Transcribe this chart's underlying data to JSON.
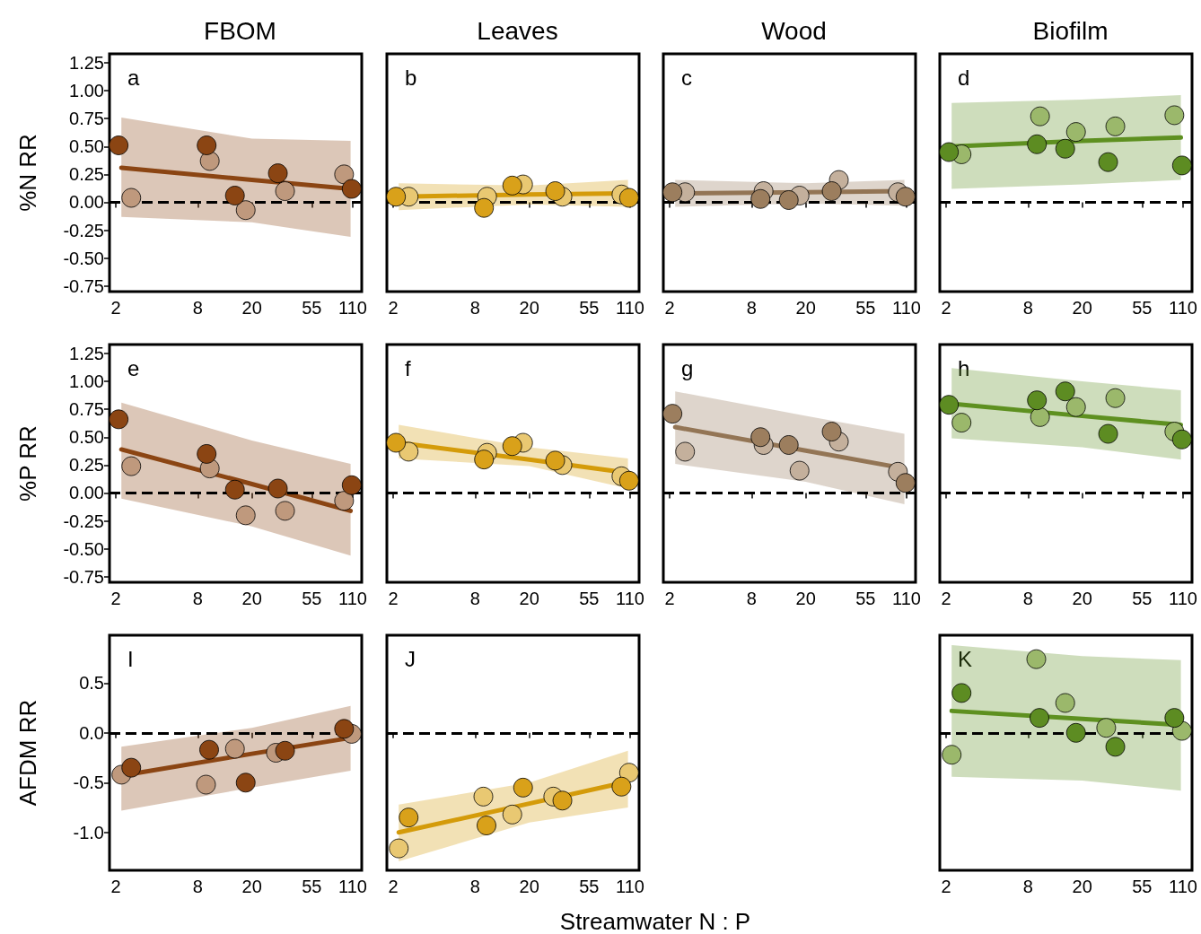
{
  "chart_data": [
    {
      "type": "scatter",
      "title": "FBOM",
      "ylabel": "%N RR",
      "annotations": [
        "a"
      ],
      "log": "x",
      "xlim": [
        1.8,
        128
      ],
      "xticks": [
        2,
        8,
        20,
        55,
        110
      ],
      "ylim": [
        -0.8,
        1.33
      ],
      "yticks": [
        -0.75,
        {
          "value": -0.5,
          "label": "-0.50"
        },
        -0.25,
        {
          "value": 0,
          "label": "0.00"
        },
        0.25,
        {
          "value": 0.5,
          "label": "0.50"
        },
        0.75,
        {
          "value": 1,
          "label": "1.00"
        },
        1.25
      ],
      "ref_lines": [
        {
          "axis": "y",
          "value": 0,
          "color": "#000000",
          "line_style": "dashed"
        }
      ],
      "series": [
        {
          "type": "line",
          "color": "#8b4513",
          "x": [
            2.2,
            20,
            106
          ],
          "values": [
            0.31,
            0.2,
            0.12
          ],
          "lower": [
            -0.13,
            -0.18,
            -0.31
          ],
          "upper": [
            0.76,
            0.57,
            0.55
          ]
        },
        {
          "marker": "circle",
          "color": "#bf997d",
          "x": [
            2.6,
            9.8,
            18,
            35,
            95
          ],
          "values": [
            0.04,
            0.37,
            -0.07,
            0.1,
            0.25
          ]
        },
        {
          "marker": "circle",
          "color": "#8b4513",
          "x": [
            2.1,
            9.3,
            15,
            31,
            108
          ],
          "values": [
            0.51,
            0.51,
            0.06,
            0.26,
            0.12
          ]
        }
      ]
    },
    {
      "type": "scatter",
      "title": "Leaves",
      "annotations": [
        "b"
      ],
      "log": "x",
      "tick_labels": "x",
      "xlim": [
        1.8,
        128
      ],
      "xticks": [
        2,
        8,
        20,
        55,
        110
      ],
      "ylim": [
        -0.8,
        1.33
      ],
      "ref_lines": [
        {
          "axis": "y",
          "value": 0,
          "color": "#000000",
          "line_style": "dashed"
        }
      ],
      "series": [
        {
          "type": "line",
          "color": "#d49b0a",
          "x": [
            2.2,
            20,
            106
          ],
          "values": [
            0.05,
            0.07,
            0.08
          ],
          "lower": [
            -0.07,
            -0.02,
            -0.04
          ],
          "upper": [
            0.17,
            0.15,
            0.2
          ]
        },
        {
          "marker": "circle",
          "color": "#e9c872",
          "x": [
            2.6,
            9.8,
            18,
            35,
            95
          ],
          "values": [
            0.05,
            0.05,
            0.16,
            0.05,
            0.07
          ]
        },
        {
          "marker": "circle",
          "color": "#d9a11a",
          "x": [
            2.1,
            9.3,
            15,
            31,
            108
          ],
          "values": [
            0.05,
            -0.05,
            0.15,
            0.1,
            0.04
          ]
        }
      ]
    },
    {
      "type": "scatter",
      "title": "Wood",
      "annotations": [
        "c"
      ],
      "log": "x",
      "tick_labels": "x",
      "xlim": [
        1.8,
        128
      ],
      "xticks": [
        2,
        8,
        20,
        55,
        110
      ],
      "ylim": [
        -0.8,
        1.33
      ],
      "ref_lines": [
        {
          "axis": "y",
          "value": 0,
          "color": "#000000",
          "line_style": "dashed"
        }
      ],
      "series": [
        {
          "type": "line",
          "color": "#937555",
          "x": [
            2.2,
            20,
            106
          ],
          "values": [
            0.08,
            0.09,
            0.1
          ],
          "lower": [
            -0.04,
            -0.01,
            -0.03
          ],
          "upper": [
            0.2,
            0.17,
            0.2
          ]
        },
        {
          "marker": "circle",
          "color": "#c4b09c",
          "x": [
            2.6,
            9.8,
            18,
            35,
            95
          ],
          "values": [
            0.09,
            0.1,
            0.06,
            0.2,
            0.09
          ]
        },
        {
          "marker": "circle",
          "color": "#9c7e5e",
          "x": [
            2.1,
            9.3,
            15,
            31,
            108
          ],
          "values": [
            0.09,
            0.03,
            0.02,
            0.1,
            0.05
          ]
        }
      ]
    },
    {
      "type": "scatter",
      "title": "Biofilm",
      "annotations": [
        "d"
      ],
      "log": "x",
      "tick_labels": "x",
      "xlim": [
        1.8,
        128
      ],
      "xticks": [
        2,
        8,
        20,
        55,
        110
      ],
      "ylim": [
        -0.8,
        1.33
      ],
      "ref_lines": [
        {
          "axis": "y",
          "value": 0,
          "color": "#000000",
          "line_style": "dashed"
        }
      ],
      "series": [
        {
          "type": "line",
          "color": "#5e9020",
          "x": [
            2.2,
            20,
            106
          ],
          "values": [
            0.5,
            0.55,
            0.58
          ],
          "lower": [
            0.12,
            0.16,
            0.2
          ],
          "upper": [
            0.89,
            0.92,
            0.96
          ]
        },
        {
          "marker": "circle",
          "color": "#9bb86b",
          "x": [
            2.6,
            9.8,
            18,
            35,
            95
          ],
          "values": [
            0.43,
            0.77,
            0.63,
            0.68,
            0.78
          ]
        },
        {
          "marker": "circle",
          "color": "#5d8c22",
          "x": [
            2.1,
            9.3,
            15,
            31,
            108
          ],
          "values": [
            0.45,
            0.52,
            0.48,
            0.36,
            0.33
          ]
        }
      ]
    },
    {
      "type": "scatter",
      "ylabel": "%P RR",
      "annotations": [
        "e"
      ],
      "log": "x",
      "xlim": [
        1.8,
        128
      ],
      "xticks": [
        2,
        8,
        20,
        55,
        110
      ],
      "ylim": [
        -0.8,
        1.33
      ],
      "yticks": [
        -0.75,
        {
          "value": -0.5,
          "label": "-0.50"
        },
        -0.25,
        {
          "value": 0,
          "label": "0.00"
        },
        0.25,
        {
          "value": 0.5,
          "label": "0.50"
        },
        0.75,
        {
          "value": 1,
          "label": "1.00"
        },
        1.25
      ],
      "ref_lines": [
        {
          "axis": "y",
          "value": 0,
          "color": "#000000",
          "line_style": "dashed"
        }
      ],
      "series": [
        {
          "type": "line",
          "color": "#8b4513",
          "x": [
            2.2,
            20,
            106
          ],
          "values": [
            0.39,
            0.08,
            -0.16
          ],
          "lower": [
            -0.05,
            -0.3,
            -0.56
          ],
          "upper": [
            0.81,
            0.47,
            0.26
          ]
        },
        {
          "marker": "circle",
          "color": "#bf997d",
          "x": [
            2.6,
            9.8,
            18,
            35,
            95
          ],
          "values": [
            0.24,
            0.22,
            -0.2,
            -0.16,
            -0.07
          ]
        },
        {
          "marker": "circle",
          "color": "#8b4513",
          "x": [
            2.1,
            9.3,
            15,
            31,
            108
          ],
          "values": [
            0.66,
            0.35,
            0.03,
            0.04,
            0.07
          ]
        }
      ]
    },
    {
      "type": "scatter",
      "annotations": [
        "f"
      ],
      "log": "x",
      "tick_labels": "x",
      "xlim": [
        1.8,
        128
      ],
      "xticks": [
        2,
        8,
        20,
        55,
        110
      ],
      "ylim": [
        -0.8,
        1.33
      ],
      "ref_lines": [
        {
          "axis": "y",
          "value": 0,
          "color": "#000000",
          "line_style": "dashed"
        }
      ],
      "series": [
        {
          "type": "line",
          "color": "#d49b0a",
          "x": [
            2.2,
            20,
            106
          ],
          "values": [
            0.45,
            0.3,
            0.18
          ],
          "lower": [
            0.31,
            0.24,
            0.04
          ],
          "upper": [
            0.61,
            0.41,
            0.31
          ]
        },
        {
          "marker": "circle",
          "color": "#e9c872",
          "x": [
            2.6,
            9.8,
            18,
            35,
            95
          ],
          "values": [
            0.37,
            0.36,
            0.45,
            0.25,
            0.15
          ]
        },
        {
          "marker": "circle",
          "color": "#d9a11a",
          "x": [
            2.1,
            9.3,
            15,
            31,
            108
          ],
          "values": [
            0.45,
            0.3,
            0.42,
            0.29,
            0.11
          ]
        }
      ]
    },
    {
      "type": "scatter",
      "annotations": [
        "g"
      ],
      "log": "x",
      "tick_labels": "x",
      "xlim": [
        1.8,
        128
      ],
      "xticks": [
        2,
        8,
        20,
        55,
        110
      ],
      "ylim": [
        -0.8,
        1.33
      ],
      "ref_lines": [
        {
          "axis": "y",
          "value": 0,
          "color": "#000000",
          "line_style": "dashed"
        }
      ],
      "series": [
        {
          "type": "line",
          "color": "#937555",
          "x": [
            2.2,
            20,
            106
          ],
          "values": [
            0.59,
            0.38,
            0.22
          ],
          "lower": [
            0.26,
            0.1,
            -0.1
          ],
          "upper": [
            0.91,
            0.69,
            0.53
          ]
        },
        {
          "marker": "circle",
          "color": "#c4b09c",
          "x": [
            2.6,
            9.8,
            18,
            35,
            95
          ],
          "values": [
            0.37,
            0.43,
            0.2,
            0.46,
            0.19
          ]
        },
        {
          "marker": "circle",
          "color": "#9c7e5e",
          "x": [
            2.1,
            9.3,
            15,
            31,
            108
          ],
          "values": [
            0.71,
            0.5,
            0.43,
            0.55,
            0.09
          ]
        }
      ]
    },
    {
      "type": "scatter",
      "annotations": [
        "h"
      ],
      "log": "x",
      "tick_labels": "x",
      "xlim": [
        1.8,
        128
      ],
      "xticks": [
        2,
        8,
        20,
        55,
        110
      ],
      "ylim": [
        -0.8,
        1.33
      ],
      "ref_lines": [
        {
          "axis": "y",
          "value": 0,
          "color": "#000000",
          "line_style": "dashed"
        }
      ],
      "series": [
        {
          "type": "line",
          "color": "#5e9020",
          "x": [
            2.2,
            20,
            106
          ],
          "values": [
            0.8,
            0.69,
            0.61
          ],
          "lower": [
            0.49,
            0.41,
            0.3
          ],
          "upper": [
            1.12,
            1.0,
            0.92
          ]
        },
        {
          "marker": "circle",
          "color": "#9bb86b",
          "x": [
            2.6,
            9.8,
            18,
            35,
            95
          ],
          "values": [
            0.63,
            0.68,
            0.77,
            0.85,
            0.55
          ]
        },
        {
          "marker": "circle",
          "color": "#5d8c22",
          "x": [
            2.1,
            9.3,
            15,
            31,
            108
          ],
          "values": [
            0.79,
            0.83,
            0.91,
            0.53,
            0.48
          ]
        }
      ]
    },
    {
      "type": "scatter",
      "ylabel": "AFDM RR",
      "annotations": [
        "I"
      ],
      "log": "x",
      "xlim": [
        1.8,
        128
      ],
      "xticks": [
        2,
        8,
        20,
        55,
        110
      ],
      "ylim": [
        -1.38,
        0.98
      ],
      "yticks": [
        {
          "value": -1,
          "label": "-1.0"
        },
        -0.5,
        {
          "value": 0,
          "label": "0.0"
        },
        0.5
      ],
      "ref_lines": [
        {
          "axis": "y",
          "value": 0,
          "color": "#000000",
          "line_style": "dashed"
        }
      ],
      "series": [
        {
          "type": "line",
          "color": "#8b4513",
          "x": [
            2.2,
            20,
            106
          ],
          "values": [
            -0.43,
            -0.21,
            -0.05
          ],
          "lower": [
            -0.78,
            -0.55,
            -0.38
          ],
          "upper": [
            -0.14,
            0.05,
            0.27
          ]
        },
        {
          "marker": "circle",
          "color": "#bf997d",
          "x": [
            2.2,
            9.2,
            15,
            30,
            108
          ],
          "values": [
            -0.42,
            -0.52,
            -0.16,
            -0.2,
            -0.01
          ]
        },
        {
          "marker": "circle",
          "color": "#8b4513",
          "x": [
            2.6,
            9.7,
            18,
            35,
            95
          ],
          "values": [
            -0.35,
            -0.17,
            -0.5,
            -0.18,
            0.04
          ]
        }
      ]
    },
    {
      "type": "scatter",
      "xlabel": "Streamwater N : P",
      "annotations": [
        "J"
      ],
      "log": "x",
      "tick_labels": "x",
      "xlim": [
        1.8,
        128
      ],
      "xticks": [
        2,
        8,
        20,
        55,
        110
      ],
      "ylim": [
        -1.38,
        0.98
      ],
      "ref_lines": [
        {
          "axis": "y",
          "value": 0,
          "color": "#000000",
          "line_style": "dashed"
        }
      ],
      "series": [
        {
          "type": "line",
          "color": "#d49b0a",
          "x": [
            2.2,
            20,
            106
          ],
          "values": [
            -1.0,
            -0.71,
            -0.49
          ],
          "lower": [
            -1.29,
            -0.9,
            -0.75
          ],
          "upper": [
            -0.72,
            -0.5,
            -0.18
          ]
        },
        {
          "marker": "circle",
          "color": "#e9c872",
          "x": [
            2.2,
            9.2,
            15,
            30,
            108
          ],
          "values": [
            -1.16,
            -0.64,
            -0.82,
            -0.64,
            -0.4
          ]
        },
        {
          "marker": "circle",
          "color": "#d9a11a",
          "x": [
            2.6,
            9.7,
            18,
            35,
            95
          ],
          "values": [
            -0.85,
            -0.93,
            -0.55,
            -0.68,
            -0.54
          ]
        }
      ]
    },
    {
      "type": "scatter",
      "annotations": [
        "K"
      ],
      "log": "x",
      "tick_labels": "x",
      "xlim": [
        1.8,
        128
      ],
      "xticks": [
        2,
        8,
        20,
        55,
        110
      ],
      "ylim": [
        -1.38,
        0.98
      ],
      "ref_lines": [
        {
          "axis": "y",
          "value": 0,
          "color": "#000000",
          "line_style": "dashed"
        }
      ],
      "series": [
        {
          "type": "line",
          "color": "#5e9020",
          "x": [
            2.2,
            20,
            106
          ],
          "values": [
            0.22,
            0.14,
            0.08
          ],
          "lower": [
            -0.44,
            -0.48,
            -0.58
          ],
          "upper": [
            0.88,
            0.77,
            0.73
          ]
        },
        {
          "marker": "circle",
          "color": "#9bb86b",
          "x": [
            2.2,
            9.2,
            15,
            30,
            108
          ],
          "values": [
            -0.22,
            0.74,
            0.3,
            0.05,
            0.02
          ]
        },
        {
          "marker": "circle",
          "color": "#5d8c22",
          "x": [
            2.6,
            9.7,
            18,
            35,
            95
          ],
          "values": [
            0.4,
            0.15,
            0.0,
            -0.14,
            0.15
          ]
        }
      ]
    }
  ]
}
